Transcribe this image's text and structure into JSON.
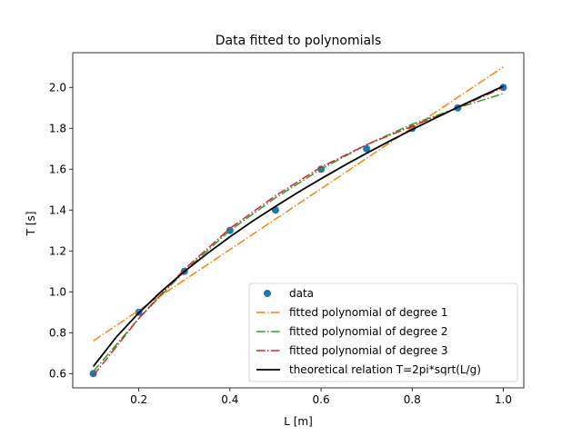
{
  "chart_data": {
    "type": "line",
    "title": "Data fitted to polynomials",
    "xlabel": "L [m]",
    "ylabel": "T [s]",
    "xlim": [
      0.055,
      1.045
    ],
    "ylim": [
      0.53,
      2.17
    ],
    "xticks": [
      "0.2",
      "0.4",
      "0.6",
      "0.8",
      "1.0"
    ],
    "yticks": [
      "0.6",
      "0.8",
      "1.0",
      "1.2",
      "1.4",
      "1.6",
      "1.8",
      "2.0"
    ],
    "grid": false,
    "legend_position": "lower right",
    "colors": {
      "data": "#1f77b4",
      "deg1": "#ff7f0e",
      "deg2": "#2ca02c",
      "deg3": "#d62728",
      "theory": "#000000"
    },
    "series": [
      {
        "name": "data",
        "style": "markers",
        "x": [
          0.1,
          0.2,
          0.3,
          0.4,
          0.5,
          0.6,
          0.7,
          0.8,
          0.9,
          1.0
        ],
        "y": [
          0.6,
          0.9,
          1.1,
          1.3,
          1.4,
          1.6,
          1.7,
          1.8,
          1.9,
          2.0
        ]
      },
      {
        "name": "fitted polynomial of degree 1",
        "style": "dashdot",
        "x": [
          0.1,
          1.0
        ],
        "y": [
          0.76,
          2.1
        ]
      },
      {
        "name": "fitted polynomial of degree 2",
        "style": "dashdot",
        "x": [
          0.1,
          0.2,
          0.3,
          0.4,
          0.5,
          0.6,
          0.7,
          0.8,
          0.9,
          1.0
        ],
        "y": [
          0.61,
          0.87,
          1.1,
          1.3,
          1.46,
          1.6,
          1.72,
          1.82,
          1.9,
          1.97
        ]
      },
      {
        "name": "fitted polynomial of degree 3",
        "style": "dashdot",
        "x": [
          0.1,
          0.2,
          0.3,
          0.4,
          0.5,
          0.6,
          0.7,
          0.8,
          0.9,
          1.0
        ],
        "y": [
          0.59,
          0.87,
          1.11,
          1.31,
          1.47,
          1.61,
          1.72,
          1.81,
          1.9,
          2.0
        ]
      },
      {
        "name": "theoretical relation T=2pi*sqrt(L/g)",
        "style": "solid",
        "x": [
          0.1,
          0.15,
          0.2,
          0.25,
          0.3,
          0.35,
          0.4,
          0.45,
          0.5,
          0.55,
          0.6,
          0.65,
          0.7,
          0.75,
          0.8,
          0.85,
          0.9,
          0.95,
          1.0
        ],
        "y": [
          0.634,
          0.777,
          0.897,
          1.003,
          1.099,
          1.187,
          1.269,
          1.346,
          1.418,
          1.487,
          1.553,
          1.617,
          1.678,
          1.737,
          1.794,
          1.849,
          1.903,
          1.955,
          2.006
        ]
      }
    ]
  }
}
